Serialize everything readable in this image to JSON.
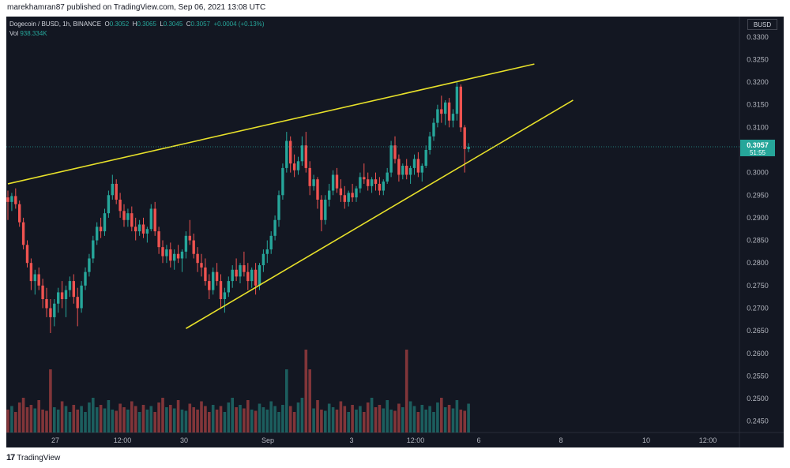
{
  "header": {
    "publisher_line": "marekhamran87 published on TradingView.com, Sep 06, 2021 13:08 UTC"
  },
  "legend": {
    "symbol": "Dogecoin / BUSD, 1h, BINANCE",
    "o_label": "O",
    "o_value": "0.3052",
    "h_label": "H",
    "h_value": "0.3065",
    "l_label": "L",
    "l_value": "0.3045",
    "c_label": "C",
    "c_value": "0.3057",
    "change": "+0.0004 (+0.13%)",
    "vol_label": "Vol",
    "vol_value": "938.334K"
  },
  "currency": "BUSD",
  "last_price": {
    "value": "0.3057",
    "countdown": "51:55"
  },
  "footer": {
    "brand": "TradingView"
  },
  "colors": {
    "bg": "#131722",
    "up": "#26a69a",
    "down": "#ef5350",
    "trendline": "#e7e02a",
    "grid": "#1e222d",
    "axis_text": "#b2b5be",
    "last_price_bg": "#26a69a"
  },
  "chart_data": {
    "type": "candlestick",
    "symbol": "Dogecoin / BUSD",
    "interval": "1h",
    "exchange": "BINANCE",
    "y_ticks": [
      "0.3300",
      "0.3250",
      "0.3200",
      "0.3150",
      "0.3100",
      "0.3050",
      "0.3000",
      "0.2950",
      "0.2900",
      "0.2850",
      "0.2800",
      "0.2750",
      "0.2700",
      "0.2650",
      "0.2600",
      "0.2550",
      "0.2500",
      "0.2450"
    ],
    "ylim": [
      0.2425,
      0.3345
    ],
    "x_ticks": [
      "27",
      "12:00",
      "30",
      "Sep",
      "3",
      "12:00",
      "6",
      "8",
      "10",
      "12:00"
    ],
    "price_path": [
      [
        0.2945,
        0.296,
        0.2895,
        0.2935
      ],
      [
        0.2935,
        0.2955,
        0.2915,
        0.2948
      ],
      [
        0.2948,
        0.2965,
        0.292,
        0.293
      ],
      [
        0.293,
        0.2938,
        0.288,
        0.289
      ],
      [
        0.289,
        0.29,
        0.283,
        0.284
      ],
      [
        0.284,
        0.285,
        0.279,
        0.28
      ],
      [
        0.28,
        0.281,
        0.274,
        0.276
      ],
      [
        0.276,
        0.2785,
        0.273,
        0.2775
      ],
      [
        0.2775,
        0.279,
        0.274,
        0.275
      ],
      [
        0.275,
        0.2765,
        0.27,
        0.272
      ],
      [
        0.272,
        0.2745,
        0.268,
        0.27
      ],
      [
        0.27,
        0.272,
        0.2645,
        0.268
      ],
      [
        0.268,
        0.272,
        0.266,
        0.271
      ],
      [
        0.271,
        0.2745,
        0.269,
        0.2735
      ],
      [
        0.2735,
        0.276,
        0.27,
        0.272
      ],
      [
        0.272,
        0.275,
        0.268,
        0.274
      ],
      [
        0.274,
        0.277,
        0.2725,
        0.276
      ],
      [
        0.276,
        0.2775,
        0.271,
        0.2725
      ],
      [
        0.2725,
        0.2745,
        0.266,
        0.27
      ],
      [
        0.27,
        0.276,
        0.269,
        0.275
      ],
      [
        0.275,
        0.279,
        0.274,
        0.278
      ],
      [
        0.278,
        0.282,
        0.277,
        0.281
      ],
      [
        0.281,
        0.286,
        0.28,
        0.285
      ],
      [
        0.285,
        0.289,
        0.284,
        0.288
      ],
      [
        0.288,
        0.29,
        0.2855,
        0.287
      ],
      [
        0.287,
        0.292,
        0.286,
        0.291
      ],
      [
        0.291,
        0.296,
        0.29,
        0.295
      ],
      [
        0.295,
        0.2995,
        0.294,
        0.2975
      ],
      [
        0.2975,
        0.2985,
        0.293,
        0.294
      ],
      [
        0.294,
        0.2955,
        0.29,
        0.2915
      ],
      [
        0.2915,
        0.293,
        0.288,
        0.2895
      ],
      [
        0.2895,
        0.292,
        0.288,
        0.291
      ],
      [
        0.291,
        0.2925,
        0.287,
        0.288
      ],
      [
        0.288,
        0.29,
        0.285,
        0.287
      ],
      [
        0.287,
        0.2895,
        0.286,
        0.2885
      ],
      [
        0.2885,
        0.29,
        0.2855,
        0.2865
      ],
      [
        0.2865,
        0.288,
        0.2845,
        0.2875
      ],
      [
        0.2875,
        0.293,
        0.287,
        0.292
      ],
      [
        0.292,
        0.2935,
        0.286,
        0.287
      ],
      [
        0.287,
        0.288,
        0.282,
        0.2835
      ],
      [
        0.2835,
        0.285,
        0.28,
        0.2815
      ],
      [
        0.2815,
        0.284,
        0.28,
        0.283
      ],
      [
        0.283,
        0.2845,
        0.279,
        0.2805
      ],
      [
        0.2805,
        0.283,
        0.2785,
        0.282
      ],
      [
        0.282,
        0.284,
        0.28,
        0.281
      ],
      [
        0.281,
        0.283,
        0.278,
        0.2825
      ],
      [
        0.2825,
        0.287,
        0.281,
        0.286
      ],
      [
        0.286,
        0.2895,
        0.284,
        0.285
      ],
      [
        0.285,
        0.2865,
        0.281,
        0.282
      ],
      [
        0.282,
        0.2835,
        0.278,
        0.28
      ],
      [
        0.28,
        0.282,
        0.277,
        0.279
      ],
      [
        0.279,
        0.281,
        0.275,
        0.276
      ],
      [
        0.276,
        0.2775,
        0.272,
        0.274
      ],
      [
        0.274,
        0.279,
        0.273,
        0.278
      ],
      [
        0.278,
        0.28,
        0.275,
        0.276
      ],
      [
        0.276,
        0.2775,
        0.27,
        0.272
      ],
      [
        0.272,
        0.2745,
        0.269,
        0.2735
      ],
      [
        0.2735,
        0.277,
        0.2725,
        0.276
      ],
      [
        0.276,
        0.2795,
        0.2745,
        0.2785
      ],
      [
        0.2785,
        0.281,
        0.276,
        0.277
      ],
      [
        0.277,
        0.28,
        0.2755,
        0.2795
      ],
      [
        0.2795,
        0.2825,
        0.277,
        0.278
      ],
      [
        0.278,
        0.28,
        0.274,
        0.276
      ],
      [
        0.276,
        0.279,
        0.2745,
        0.2785
      ],
      [
        0.2785,
        0.28,
        0.273,
        0.275
      ],
      [
        0.275,
        0.28,
        0.274,
        0.2795
      ],
      [
        0.2795,
        0.283,
        0.278,
        0.282
      ],
      [
        0.282,
        0.285,
        0.28,
        0.283
      ],
      [
        0.283,
        0.287,
        0.282,
        0.286
      ],
      [
        0.286,
        0.2905,
        0.285,
        0.2895
      ],
      [
        0.2895,
        0.296,
        0.288,
        0.295
      ],
      [
        0.295,
        0.302,
        0.294,
        0.301
      ],
      [
        0.301,
        0.309,
        0.3,
        0.307
      ],
      [
        0.307,
        0.308,
        0.3,
        0.302
      ],
      [
        0.302,
        0.304,
        0.299,
        0.3005
      ],
      [
        0.3005,
        0.3035,
        0.2995,
        0.3025
      ],
      [
        0.3025,
        0.308,
        0.3015,
        0.306
      ],
      [
        0.306,
        0.309,
        0.3,
        0.301
      ],
      [
        0.301,
        0.3025,
        0.295,
        0.297
      ],
      [
        0.297,
        0.2995,
        0.296,
        0.2985
      ],
      [
        0.2985,
        0.299,
        0.292,
        0.294
      ],
      [
        0.294,
        0.295,
        0.287,
        0.2895
      ],
      [
        0.2895,
        0.295,
        0.2885,
        0.294
      ],
      [
        0.294,
        0.2975,
        0.2925,
        0.296
      ],
      [
        0.296,
        0.3005,
        0.295,
        0.2995
      ],
      [
        0.2995,
        0.301,
        0.2955,
        0.2965
      ],
      [
        0.2965,
        0.2985,
        0.2935,
        0.295
      ],
      [
        0.295,
        0.297,
        0.292,
        0.2935
      ],
      [
        0.2935,
        0.296,
        0.2925,
        0.2955
      ],
      [
        0.2955,
        0.2975,
        0.2935,
        0.2945
      ],
      [
        0.2945,
        0.297,
        0.2935,
        0.2965
      ],
      [
        0.2965,
        0.3,
        0.2955,
        0.299
      ],
      [
        0.299,
        0.302,
        0.2975,
        0.2985
      ],
      [
        0.2985,
        0.3,
        0.296,
        0.297
      ],
      [
        0.297,
        0.299,
        0.2955,
        0.2985
      ],
      [
        0.2985,
        0.3,
        0.296,
        0.2975
      ],
      [
        0.2975,
        0.299,
        0.295,
        0.296
      ],
      [
        0.296,
        0.2985,
        0.295,
        0.298
      ],
      [
        0.298,
        0.301,
        0.2975,
        0.3
      ],
      [
        0.3,
        0.307,
        0.299,
        0.306
      ],
      [
        0.306,
        0.308,
        0.302,
        0.303
      ],
      [
        0.303,
        0.304,
        0.298,
        0.2995
      ],
      [
        0.2995,
        0.302,
        0.2985,
        0.3015
      ],
      [
        0.3015,
        0.303,
        0.2985,
        0.2995
      ],
      [
        0.2995,
        0.3015,
        0.2975,
        0.301
      ],
      [
        0.301,
        0.304,
        0.2995,
        0.303
      ],
      [
        0.303,
        0.3045,
        0.299,
        0.3
      ],
      [
        0.3,
        0.302,
        0.298,
        0.3015
      ],
      [
        0.3015,
        0.306,
        0.301,
        0.305
      ],
      [
        0.305,
        0.309,
        0.304,
        0.308
      ],
      [
        0.308,
        0.312,
        0.307,
        0.311
      ],
      [
        0.311,
        0.315,
        0.31,
        0.314
      ],
      [
        0.314,
        0.317,
        0.311,
        0.313
      ],
      [
        0.313,
        0.316,
        0.3105,
        0.3155
      ],
      [
        0.3155,
        0.3165,
        0.31,
        0.3115
      ],
      [
        0.3115,
        0.314,
        0.31,
        0.313
      ],
      [
        0.313,
        0.32,
        0.3115,
        0.319
      ],
      [
        0.319,
        0.3195,
        0.309,
        0.31
      ],
      [
        0.31,
        0.3105,
        0.3,
        0.3052
      ],
      [
        0.3052,
        0.3065,
        0.3045,
        0.3057
      ]
    ],
    "trendlines": [
      {
        "name": "upper",
        "from": [
          0,
          0.2975
        ],
        "to": [
          136,
          0.324
        ]
      },
      {
        "name": "lower",
        "from": [
          46,
          0.2655
        ],
        "to": [
          146,
          0.316
        ]
      }
    ],
    "last_price": 0.3057,
    "grid": false,
    "watermark": "TradingView"
  }
}
